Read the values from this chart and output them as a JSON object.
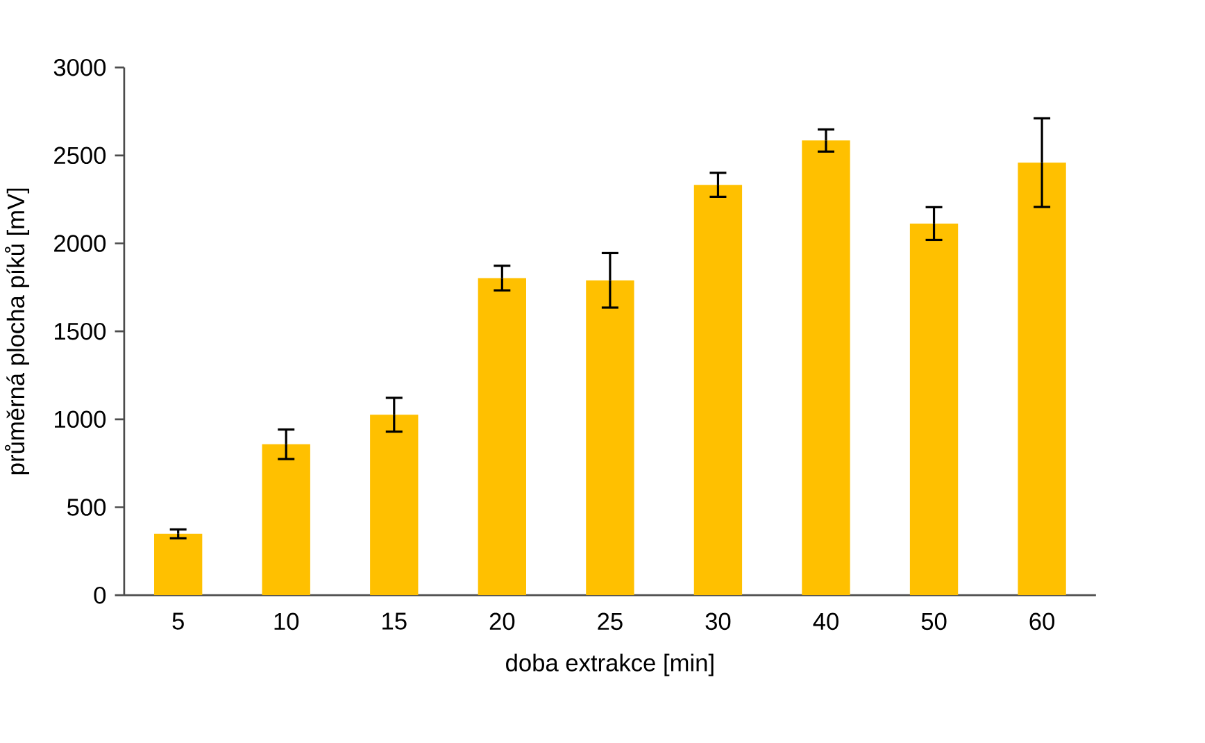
{
  "chart_data": {
    "type": "bar",
    "xlabel": "doba extrakce [min]",
    "ylabel": "průměrná plocha píků [mV]",
    "categories": [
      "5",
      "10",
      "15",
      "20",
      "25",
      "30",
      "40",
      "50",
      "60"
    ],
    "values": [
      349,
      858,
      1026,
      1803,
      1790,
      2333,
      2585,
      2113,
      2459
    ],
    "errors": [
      25,
      84,
      96,
      70,
      155,
      68,
      63,
      93,
      252
    ],
    "color": "#ffc000",
    "ylim": [
      0,
      3000
    ],
    "yticks": [
      0,
      500,
      1000,
      1500,
      2000,
      2500,
      3000
    ],
    "grid": false
  }
}
